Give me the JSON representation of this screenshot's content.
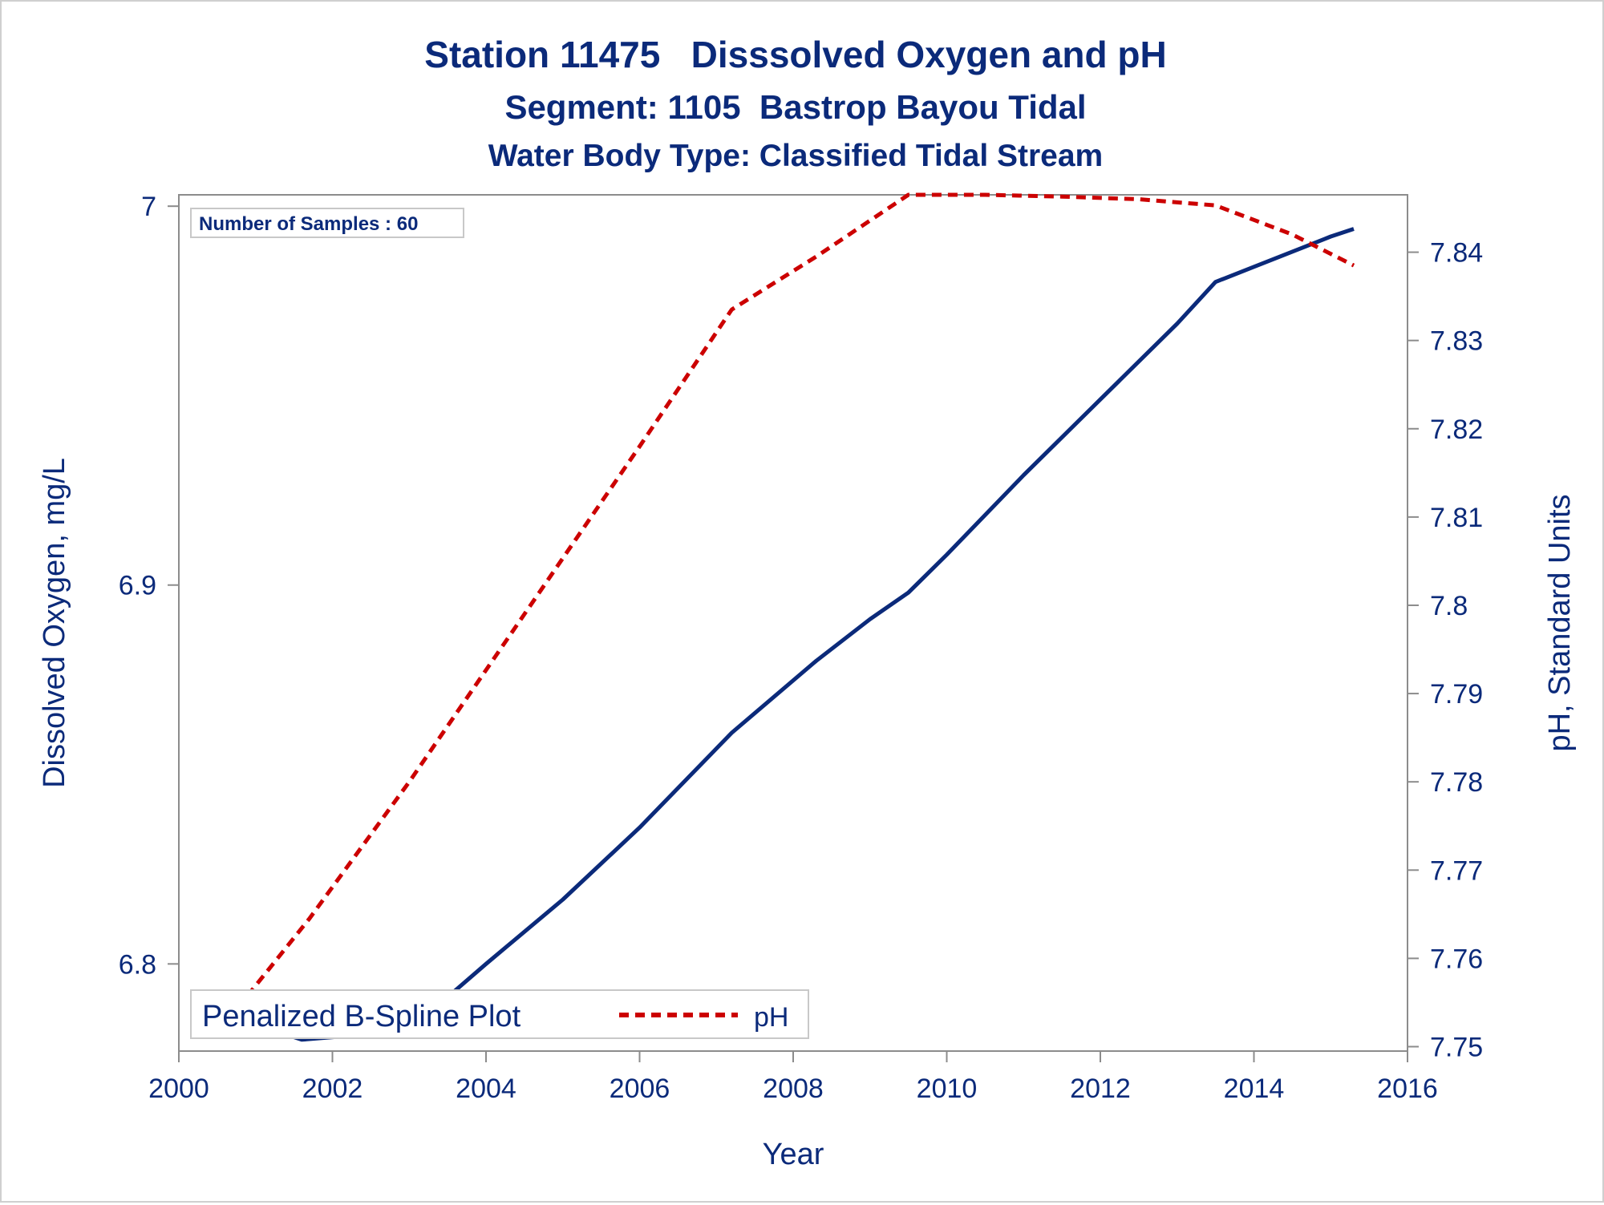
{
  "colors": {
    "text": "#0b2a7a",
    "do_line": "#0b2a7a",
    "ph_line": "#cc0000",
    "axis": "#8c8c8c",
    "legend_border": "#c8c8c8",
    "frame": "#cfcfcf"
  },
  "chart_data": {
    "type": "line",
    "title": "Station 11475   Disssolved Oxygen and pH",
    "subtitle1": "Segment: 1105  Bastrop Bayou Tidal",
    "subtitle2": "Water Body Type: Classified Tidal Stream",
    "xlabel": "Year",
    "ylabel_left": "Dissolved Oxygen, mg/L",
    "ylabel_right": "pH, Standard Units",
    "xlim": [
      2000,
      2016
    ],
    "ylim_left": [
      6.777,
      7.003
    ],
    "ylim_right": [
      7.7495,
      7.8465
    ],
    "x_ticks": [
      "2000",
      "2002",
      "2004",
      "2006",
      "2008",
      "2010",
      "2012",
      "2014",
      "2016"
    ],
    "y_left_ticks": [
      "6.8",
      "6.9",
      "7"
    ],
    "y_right_ticks": [
      "7.75",
      "7.76",
      "7.77",
      "7.78",
      "7.79",
      "7.8",
      "7.81",
      "7.82",
      "7.83",
      "7.84"
    ],
    "annotation": "Number of Samples : 60",
    "legend": {
      "title": "Penalized B-Spline Plot",
      "entries": [
        "pH"
      ],
      "position": "bottom-left"
    },
    "series": [
      {
        "axis": "left",
        "style": "solid",
        "x": [
          2000.5,
          2001.0,
          2001.6,
          2002.2,
          2002.8,
          2003.2,
          2004.0,
          2005.0,
          2006.0,
          2007.2,
          2008.3,
          2009.0,
          2009.5,
          2010.0,
          2011.0,
          2012.0,
          2013.0,
          2013.5,
          2014.0,
          2014.5,
          2015.0,
          2015.3
        ],
        "values": [
          6.787,
          6.784,
          6.78,
          6.781,
          6.784,
          6.786,
          6.8,
          6.817,
          6.836,
          6.861,
          6.88,
          6.891,
          6.898,
          6.908,
          6.929,
          6.949,
          6.969,
          6.98,
          6.984,
          6.988,
          6.992,
          6.994
        ]
      },
      {
        "name": "pH",
        "axis": "right",
        "style": "dashed",
        "x": [
          2000.5,
          2001.7,
          2003.0,
          2004.5,
          2006.0,
          2007.2,
          2008.3,
          2009.5,
          2010.5,
          2011.5,
          2012.5,
          2013.5,
          2014.5,
          2015.3
        ],
        "values": [
          7.7515,
          7.7645,
          7.78,
          7.799,
          7.818,
          7.8335,
          7.8395,
          7.8465,
          7.8465,
          7.8463,
          7.846,
          7.8453,
          7.842,
          7.8385
        ]
      }
    ]
  }
}
